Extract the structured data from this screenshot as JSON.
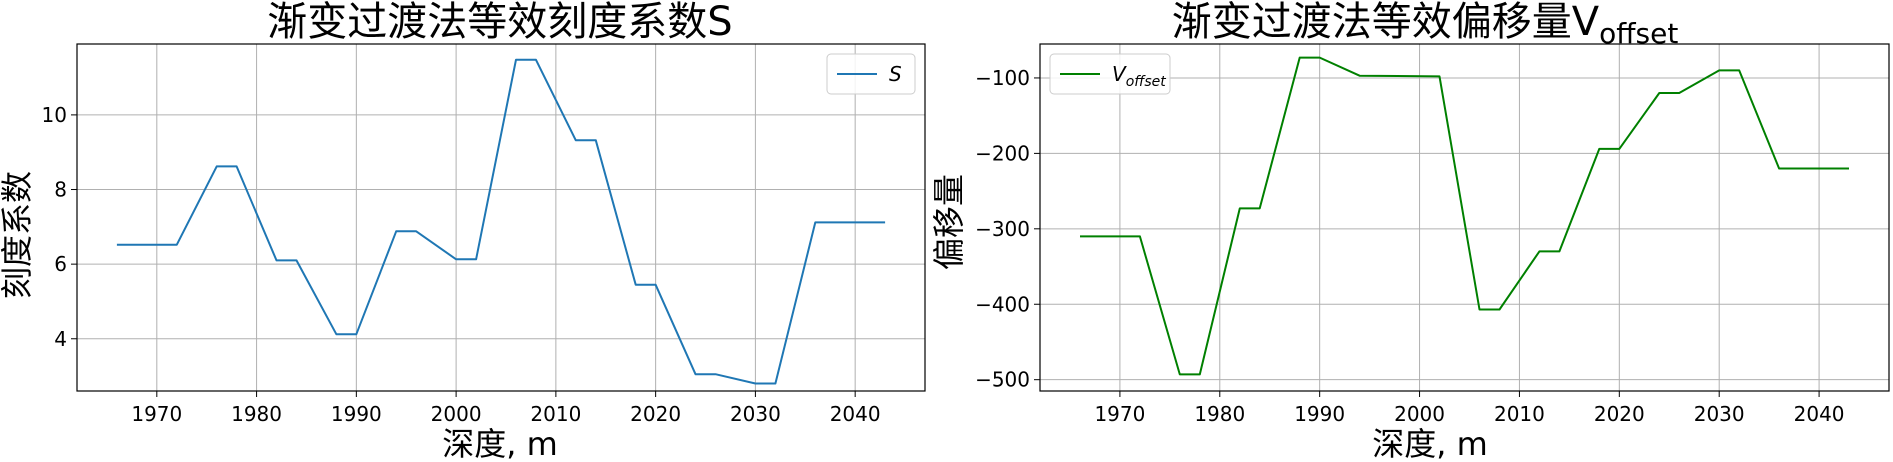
{
  "chart_data": [
    {
      "type": "line",
      "title": "渐变过渡法等效刻度系数S",
      "xlabel": "深度, m",
      "ylabel": "刻度系数",
      "xlim": [
        1962,
        2047
      ],
      "ylim": [
        2.6,
        11.9
      ],
      "xticks": [
        1970,
        1980,
        1990,
        2000,
        2010,
        2020,
        2030,
        2040
      ],
      "yticks": [
        4,
        6,
        8,
        10
      ],
      "grid": true,
      "legend_position": "upper-right",
      "series": [
        {
          "name": "S",
          "color": "#1f77b4",
          "x": [
            1966,
            1972,
            1976,
            1978,
            1982,
            1984,
            1988,
            1990,
            1994,
            1996,
            2000,
            2002,
            2006,
            2008,
            2012,
            2014,
            2018,
            2020,
            2024,
            2026,
            2030,
            2032,
            2036,
            2043
          ],
          "y": [
            6.52,
            6.52,
            8.62,
            8.62,
            6.1,
            6.1,
            4.12,
            4.12,
            6.88,
            6.88,
            6.13,
            6.13,
            11.48,
            11.48,
            9.32,
            9.32,
            5.45,
            5.45,
            3.05,
            3.05,
            2.8,
            2.8,
            7.12,
            7.12
          ]
        }
      ]
    },
    {
      "type": "line",
      "title": "渐变过渡法等效偏移量V",
      "title_subscript": "offset",
      "xlabel": "深度, m",
      "ylabel": "偏移量",
      "xlim": [
        1962,
        2047
      ],
      "ylim": [
        -515,
        -55
      ],
      "xticks": [
        1970,
        1980,
        1990,
        2000,
        2010,
        2020,
        2030,
        2040
      ],
      "yticks": [
        -500,
        -400,
        -300,
        -200,
        -100
      ],
      "grid": true,
      "legend_position": "upper-left",
      "series": [
        {
          "name": "V",
          "name_subscript": "offset",
          "color": "#008000",
          "x": [
            1966,
            1972,
            1976,
            1978,
            1982,
            1984,
            1988,
            1990,
            1994,
            2002,
            2006,
            2008,
            2012,
            2014,
            2018,
            2020,
            2024,
            2026,
            2030,
            2032,
            2036,
            2043
          ],
          "y": [
            -310,
            -310,
            -493,
            -493,
            -273,
            -273,
            -73,
            -73,
            -97,
            -98,
            -407,
            -407,
            -330,
            -330,
            -194,
            -194,
            -120,
            -120,
            -90,
            -90,
            -220,
            -220
          ]
        }
      ]
    }
  ]
}
